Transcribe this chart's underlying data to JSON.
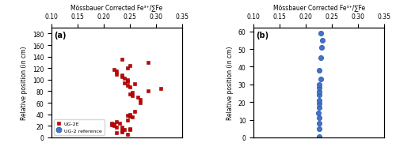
{
  "panel_a": {
    "label": "(a)",
    "xlim": [
      0.1,
      0.35
    ],
    "ylim": [
      0,
      190
    ],
    "xticks": [
      0.1,
      0.15,
      0.2,
      0.25,
      0.3,
      0.35
    ],
    "yticks": [
      0,
      20,
      40,
      60,
      80,
      100,
      120,
      140,
      160,
      180
    ],
    "ug2e_x": [
      0.245,
      0.225,
      0.235,
      0.235,
      0.24,
      0.25,
      0.25,
      0.235,
      0.225,
      0.22,
      0.215,
      0.22,
      0.215,
      0.23,
      0.225,
      0.245,
      0.255,
      0.25,
      0.245,
      0.25,
      0.26,
      0.27,
      0.27,
      0.265,
      0.255,
      0.25,
      0.255,
      0.285,
      0.31,
      0.25,
      0.245,
      0.26,
      0.24,
      0.245,
      0.245,
      0.24,
      0.235,
      0.235,
      0.225,
      0.225,
      0.22,
      0.245,
      0.25,
      0.285,
      0.235
    ],
    "ug2e_y": [
      5,
      8,
      10,
      12,
      13,
      14,
      15,
      17,
      18,
      20,
      22,
      23,
      24,
      25,
      27,
      30,
      35,
      37,
      38,
      40,
      45,
      60,
      65,
      70,
      72,
      75,
      78,
      80,
      85,
      88,
      90,
      93,
      95,
      97,
      100,
      103,
      105,
      108,
      110,
      115,
      118,
      120,
      125,
      130,
      135
    ],
    "xlabel": "Mössbauer Corrected Fe³⁺/∑Fe",
    "ylabel": "Relative position (in cm)",
    "marker_color_ug2e": "#cc0000",
    "marker_color_ref": "#4472c4"
  },
  "panel_b": {
    "label": "(b)",
    "xlim": [
      0.1,
      0.35
    ],
    "ylim": [
      0,
      62
    ],
    "xticks": [
      0.1,
      0.15,
      0.2,
      0.25,
      0.3,
      0.35
    ],
    "yticks": [
      0,
      10,
      20,
      30,
      40,
      50,
      60
    ],
    "ug2ref_x": [
      0.225,
      0.225,
      0.225,
      0.226,
      0.224,
      0.226,
      0.225,
      0.226,
      0.225,
      0.226,
      0.225,
      0.226,
      0.228,
      0.225,
      0.228,
      0.23,
      0.232,
      0.228
    ],
    "ug2ref_y": [
      0.5,
      5,
      8,
      11,
      14,
      17,
      19,
      21,
      24,
      26,
      28,
      30,
      33,
      38,
      45,
      51,
      55,
      59
    ],
    "xlabel": "Mössbauer Corrected Fe³⁺/∑Fe",
    "ylabel": "Relative position (in cm)",
    "marker_color_ref": "#4472c4"
  },
  "legend_ug2ref_label": "UG-2 reference",
  "legend_ug2e_label": "UG-2E"
}
